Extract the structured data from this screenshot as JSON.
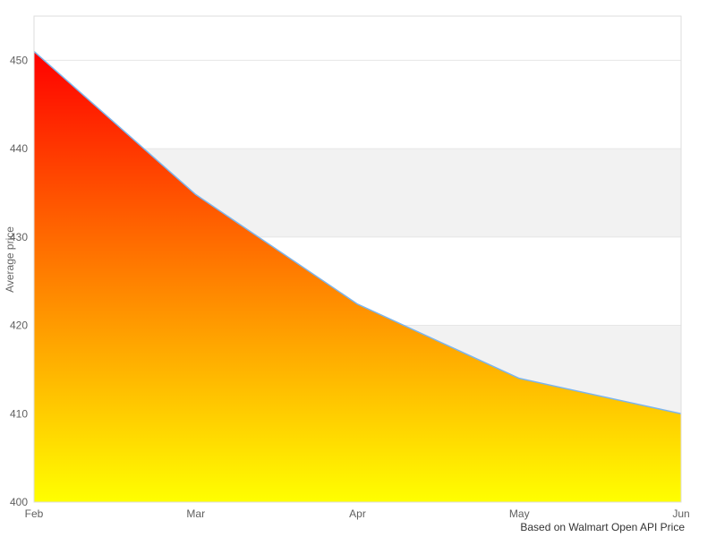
{
  "chart_data": {
    "type": "area",
    "title": "",
    "xlabel": "",
    "ylabel": "Average price",
    "caption": "Based on Walmart Open API Price",
    "categories": [
      "Feb",
      "Mar",
      "Apr",
      "May",
      "Jun"
    ],
    "values": [
      451,
      434.8,
      422.4,
      414,
      410
    ],
    "ylim": [
      400,
      455
    ],
    "yticks": [
      400,
      410,
      420,
      430,
      440,
      450
    ],
    "grid": true,
    "legend_position": "none",
    "alternate_bands": [
      [
        410,
        420
      ],
      [
        430,
        440
      ]
    ],
    "colors": {
      "line": "#7cb5ec",
      "area_gradient_top": "#ff0000",
      "area_gradient_bottom": "#ffff00",
      "band_fill": "#f2f2f2",
      "gridline": "#e6e6e6",
      "plot_border": "#dedede",
      "tick_label": "#606060",
      "axis_title": "#666666",
      "caption_text": "#333333"
    }
  }
}
